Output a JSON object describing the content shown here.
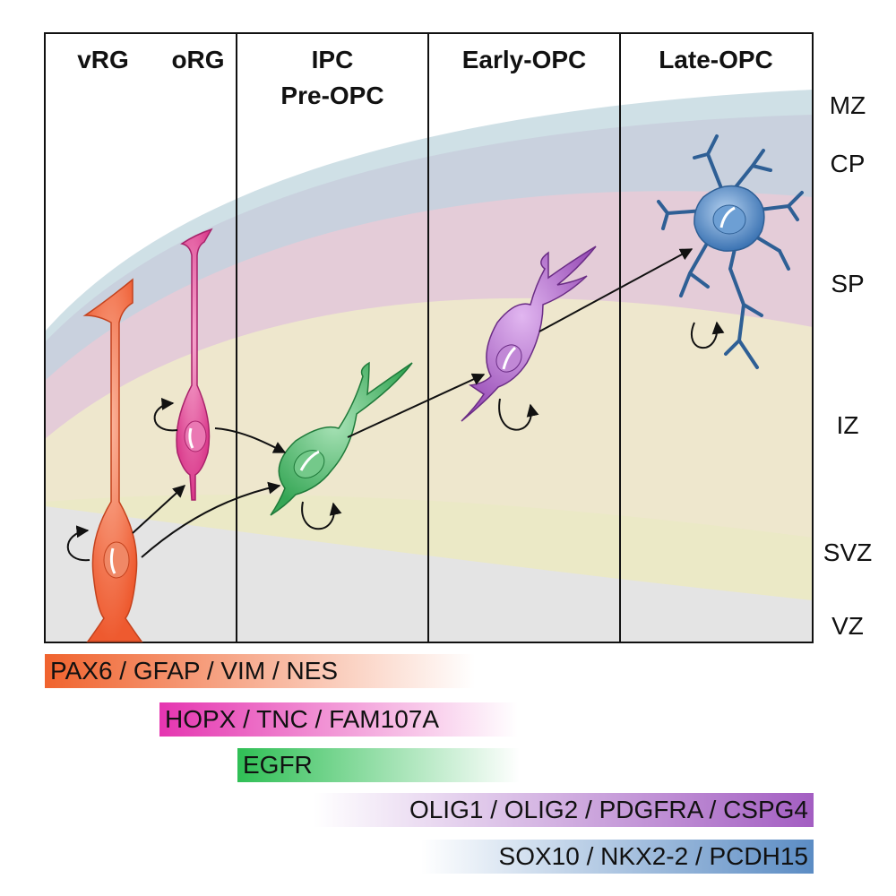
{
  "stages": [
    "vRG",
    "oRG",
    "IPC",
    "Pre-OPC",
    "Early-OPC",
    "Late-OPC"
  ],
  "zones": [
    "MZ",
    "CP",
    "SP",
    "IZ",
    "SVZ",
    "VZ"
  ],
  "cells": {
    "vrg": {
      "name": "vRG cell",
      "color": "#f0633a"
    },
    "org": {
      "name": "oRG cell",
      "color": "#e0408f"
    },
    "ipc": {
      "name": "Pre-OPC cell",
      "color": "#3fb15f"
    },
    "early_opc": {
      "name": "Early-OPC cell",
      "color": "#a45cbf"
    },
    "late_opc": {
      "name": "Late-OPC cell",
      "color": "#3f7fbf"
    }
  },
  "markers": [
    {
      "text": "PAX6 / GFAP / VIM / NES",
      "color": "#f0632e"
    },
    {
      "text": "HOPX / TNC / FAM107A",
      "color": "#e535b0"
    },
    {
      "text": "EGFR",
      "color": "#2fbf55"
    },
    {
      "text": "OLIG1 / OLIG2 / PDGFRA / CSPG4",
      "color": "#a35ec2"
    },
    {
      "text": "SOX10 / NKX2-2 / PCDH15",
      "color": "#5b8cc4"
    }
  ]
}
